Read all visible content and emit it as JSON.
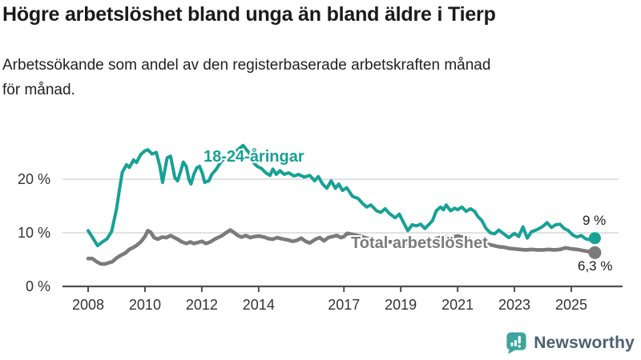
{
  "header": {
    "title": "Högre arbetslöshet bland unga än bland äldre i Tierp",
    "subtitle": "Arbetssökande som andel av den registerbaserade arbetskraften månad för månad.",
    "subtitle_lines": [
      "Arbetssökande som andel av den registerbaserade arbetskraften månad",
      "för månad."
    ]
  },
  "footer": {
    "brand": "Newsworthy"
  },
  "colors": {
    "young_line": "#17a195",
    "total_line": "#7b7b7b",
    "grid": "#d9d9d9",
    "axis": "#4f4f4f",
    "tick_label": "#333333",
    "end_label": "#1a1a1a",
    "logo_icon": "#3ea49d",
    "logo_text": "#4a6170",
    "background": "#ffffff"
  },
  "chart_data": {
    "type": "line",
    "title": "Högre arbetslöshet bland unga än bland äldre i Tierp",
    "subtitle": "Arbetssökande som andel av den registerbaserade arbetskraften månad för månad.",
    "unit": "percent of registered labour force",
    "grid": true,
    "x_axis": {
      "tick_years": [
        2008,
        2010,
        2012,
        2014,
        2017,
        2019,
        2021,
        2023,
        2025
      ],
      "range": [
        2007.2,
        2026.5
      ]
    },
    "y_axis": {
      "ticks": [
        0,
        10,
        20
      ],
      "tick_labels": [
        "0 %",
        "10 %",
        "20 %"
      ],
      "range": [
        0,
        27
      ]
    },
    "series": [
      {
        "name": "18-24-åringar",
        "color": "#17a195",
        "end_label": "9 %",
        "end_value": 9.0,
        "points": [
          [
            2008.0,
            10.4
          ],
          [
            2008.17,
            9.0
          ],
          [
            2008.33,
            7.6
          ],
          [
            2008.5,
            8.3
          ],
          [
            2008.67,
            8.9
          ],
          [
            2008.83,
            10.3
          ],
          [
            2009.0,
            14.5
          ],
          [
            2009.1,
            18.0
          ],
          [
            2009.2,
            21.3
          ],
          [
            2009.35,
            22.7
          ],
          [
            2009.45,
            22.2
          ],
          [
            2009.6,
            23.6
          ],
          [
            2009.7,
            23.1
          ],
          [
            2009.85,
            24.6
          ],
          [
            2010.0,
            25.3
          ],
          [
            2010.1,
            25.5
          ],
          [
            2010.25,
            24.7
          ],
          [
            2010.4,
            25.0
          ],
          [
            2010.52,
            22.5
          ],
          [
            2010.62,
            19.4
          ],
          [
            2010.78,
            24.0
          ],
          [
            2010.9,
            24.3
          ],
          [
            2011.05,
            20.3
          ],
          [
            2011.15,
            19.7
          ],
          [
            2011.25,
            21.4
          ],
          [
            2011.35,
            23.2
          ],
          [
            2011.45,
            22.4
          ],
          [
            2011.55,
            19.9
          ],
          [
            2011.62,
            19.1
          ],
          [
            2011.72,
            20.9
          ],
          [
            2011.82,
            22.1
          ],
          [
            2011.92,
            22.4
          ],
          [
            2012.02,
            21.1
          ],
          [
            2012.1,
            19.4
          ],
          [
            2012.25,
            19.7
          ],
          [
            2012.35,
            20.9
          ],
          [
            2012.5,
            21.8
          ],
          [
            2012.65,
            23.0
          ],
          [
            2012.8,
            24.0
          ],
          [
            2013.0,
            24.6
          ],
          [
            2013.2,
            25.2
          ],
          [
            2013.45,
            26.3
          ],
          [
            2013.65,
            25.0
          ],
          [
            2013.8,
            23.2
          ],
          [
            2013.95,
            22.4
          ],
          [
            2014.1,
            22.0
          ],
          [
            2014.25,
            21.2
          ],
          [
            2014.4,
            20.7
          ],
          [
            2014.5,
            21.9
          ],
          [
            2014.62,
            20.9
          ],
          [
            2014.75,
            21.6
          ],
          [
            2014.9,
            20.9
          ],
          [
            2015.05,
            21.2
          ],
          [
            2015.25,
            20.6
          ],
          [
            2015.4,
            20.9
          ],
          [
            2015.6,
            20.4
          ],
          [
            2015.8,
            20.7
          ],
          [
            2015.97,
            19.7
          ],
          [
            2016.1,
            20.5
          ],
          [
            2016.25,
            19.1
          ],
          [
            2016.4,
            18.3
          ],
          [
            2016.55,
            19.7
          ],
          [
            2016.7,
            18.3
          ],
          [
            2016.82,
            19.1
          ],
          [
            2016.95,
            17.9
          ],
          [
            2017.1,
            18.4
          ],
          [
            2017.3,
            16.8
          ],
          [
            2017.5,
            16.4
          ],
          [
            2017.65,
            15.5
          ],
          [
            2017.8,
            14.8
          ],
          [
            2017.95,
            15.2
          ],
          [
            2018.15,
            14.1
          ],
          [
            2018.3,
            13.8
          ],
          [
            2018.45,
            14.5
          ],
          [
            2018.6,
            13.6
          ],
          [
            2018.8,
            12.8
          ],
          [
            2018.95,
            13.5
          ],
          [
            2019.1,
            11.9
          ],
          [
            2019.25,
            10.4
          ],
          [
            2019.4,
            11.5
          ],
          [
            2019.55,
            11.3
          ],
          [
            2019.7,
            11.6
          ],
          [
            2019.85,
            10.8
          ],
          [
            2020.0,
            11.6
          ],
          [
            2020.12,
            12.3
          ],
          [
            2020.25,
            14.1
          ],
          [
            2020.4,
            14.8
          ],
          [
            2020.5,
            14.3
          ],
          [
            2020.6,
            15.2
          ],
          [
            2020.75,
            14.1
          ],
          [
            2020.9,
            14.6
          ],
          [
            2021.0,
            14.3
          ],
          [
            2021.15,
            14.8
          ],
          [
            2021.3,
            14.0
          ],
          [
            2021.45,
            14.5
          ],
          [
            2021.6,
            14.0
          ],
          [
            2021.72,
            13.0
          ],
          [
            2021.85,
            12.3
          ],
          [
            2022.0,
            10.8
          ],
          [
            2022.15,
            10.0
          ],
          [
            2022.3,
            9.8
          ],
          [
            2022.45,
            10.5
          ],
          [
            2022.6,
            9.9
          ],
          [
            2022.8,
            9.1
          ],
          [
            2023.0,
            9.9
          ],
          [
            2023.15,
            9.3
          ],
          [
            2023.3,
            11.1
          ],
          [
            2023.45,
            9.0
          ],
          [
            2023.6,
            10.2
          ],
          [
            2023.8,
            10.6
          ],
          [
            2024.0,
            11.2
          ],
          [
            2024.15,
            11.9
          ],
          [
            2024.3,
            11.0
          ],
          [
            2024.45,
            11.5
          ],
          [
            2024.6,
            11.6
          ],
          [
            2024.75,
            10.8
          ],
          [
            2024.9,
            10.4
          ],
          [
            2025.05,
            9.6
          ],
          [
            2025.2,
            9.2
          ],
          [
            2025.35,
            9.5
          ],
          [
            2025.5,
            8.9
          ],
          [
            2025.65,
            8.7
          ],
          [
            2025.83,
            9.0
          ]
        ]
      },
      {
        "name": "Total arbetslöshet",
        "color": "#7b7b7b",
        "end_label": "6,3 %",
        "end_value": 6.3,
        "points": [
          [
            2008.0,
            5.2
          ],
          [
            2008.15,
            5.2
          ],
          [
            2008.3,
            4.6
          ],
          [
            2008.45,
            4.2
          ],
          [
            2008.6,
            4.2
          ],
          [
            2008.72,
            4.4
          ],
          [
            2008.85,
            4.6
          ],
          [
            2009.0,
            5.3
          ],
          [
            2009.15,
            5.8
          ],
          [
            2009.3,
            6.2
          ],
          [
            2009.45,
            6.9
          ],
          [
            2009.6,
            7.3
          ],
          [
            2009.72,
            7.7
          ],
          [
            2009.85,
            8.3
          ],
          [
            2010.0,
            9.3
          ],
          [
            2010.1,
            10.4
          ],
          [
            2010.2,
            10.1
          ],
          [
            2010.32,
            9.1
          ],
          [
            2010.45,
            8.8
          ],
          [
            2010.6,
            9.2
          ],
          [
            2010.75,
            9.1
          ],
          [
            2010.9,
            9.5
          ],
          [
            2011.0,
            9.2
          ],
          [
            2011.15,
            8.8
          ],
          [
            2011.3,
            8.3
          ],
          [
            2011.45,
            8.0
          ],
          [
            2011.6,
            8.3
          ],
          [
            2011.72,
            8.0
          ],
          [
            2011.86,
            8.2
          ],
          [
            2012.0,
            8.4
          ],
          [
            2012.15,
            8.0
          ],
          [
            2012.3,
            8.3
          ],
          [
            2012.45,
            8.8
          ],
          [
            2012.6,
            9.2
          ],
          [
            2012.72,
            9.5
          ],
          [
            2012.85,
            10.0
          ],
          [
            2013.0,
            10.5
          ],
          [
            2013.12,
            10.1
          ],
          [
            2013.27,
            9.5
          ],
          [
            2013.4,
            9.2
          ],
          [
            2013.55,
            9.5
          ],
          [
            2013.7,
            9.1
          ],
          [
            2013.85,
            9.3
          ],
          [
            2014.0,
            9.4
          ],
          [
            2014.2,
            9.2
          ],
          [
            2014.35,
            8.9
          ],
          [
            2014.5,
            8.8
          ],
          [
            2014.65,
            9.1
          ],
          [
            2014.8,
            8.9
          ],
          [
            2015.0,
            8.7
          ],
          [
            2015.2,
            8.4
          ],
          [
            2015.35,
            8.6
          ],
          [
            2015.5,
            9.0
          ],
          [
            2015.65,
            8.4
          ],
          [
            2015.8,
            8.1
          ],
          [
            2016.0,
            8.8
          ],
          [
            2016.15,
            9.1
          ],
          [
            2016.3,
            8.5
          ],
          [
            2016.45,
            9.1
          ],
          [
            2016.6,
            9.3
          ],
          [
            2016.75,
            9.5
          ],
          [
            2016.9,
            9.1
          ],
          [
            2017.0,
            9.3
          ],
          [
            2017.12,
            9.9
          ],
          [
            2017.3,
            9.7
          ],
          [
            2017.55,
            9.4
          ],
          [
            2017.8,
            9.0
          ],
          [
            2018.05,
            8.7
          ],
          [
            2018.35,
            8.4
          ],
          [
            2018.65,
            8.3
          ],
          [
            2019.0,
            8.2
          ],
          [
            2019.3,
            8.0
          ],
          [
            2019.6,
            7.9
          ],
          [
            2019.9,
            8.1
          ],
          [
            2020.2,
            8.8
          ],
          [
            2020.5,
            9.3
          ],
          [
            2020.8,
            9.2
          ],
          [
            2021.0,
            9.4
          ],
          [
            2021.3,
            9.0
          ],
          [
            2021.6,
            8.6
          ],
          [
            2021.9,
            8.1
          ],
          [
            2022.2,
            7.7
          ],
          [
            2022.45,
            7.4
          ],
          [
            2022.65,
            7.3
          ],
          [
            2022.8,
            7.1
          ],
          [
            2023.0,
            7.0
          ],
          [
            2023.2,
            6.9
          ],
          [
            2023.4,
            6.8
          ],
          [
            2023.6,
            6.9
          ],
          [
            2023.8,
            6.8
          ],
          [
            2024.0,
            6.8
          ],
          [
            2024.2,
            6.9
          ],
          [
            2024.4,
            6.8
          ],
          [
            2024.6,
            6.9
          ],
          [
            2024.8,
            7.2
          ],
          [
            2025.0,
            7.0
          ],
          [
            2025.2,
            6.9
          ],
          [
            2025.4,
            6.7
          ],
          [
            2025.6,
            6.5
          ],
          [
            2025.83,
            6.3
          ]
        ]
      }
    ]
  }
}
